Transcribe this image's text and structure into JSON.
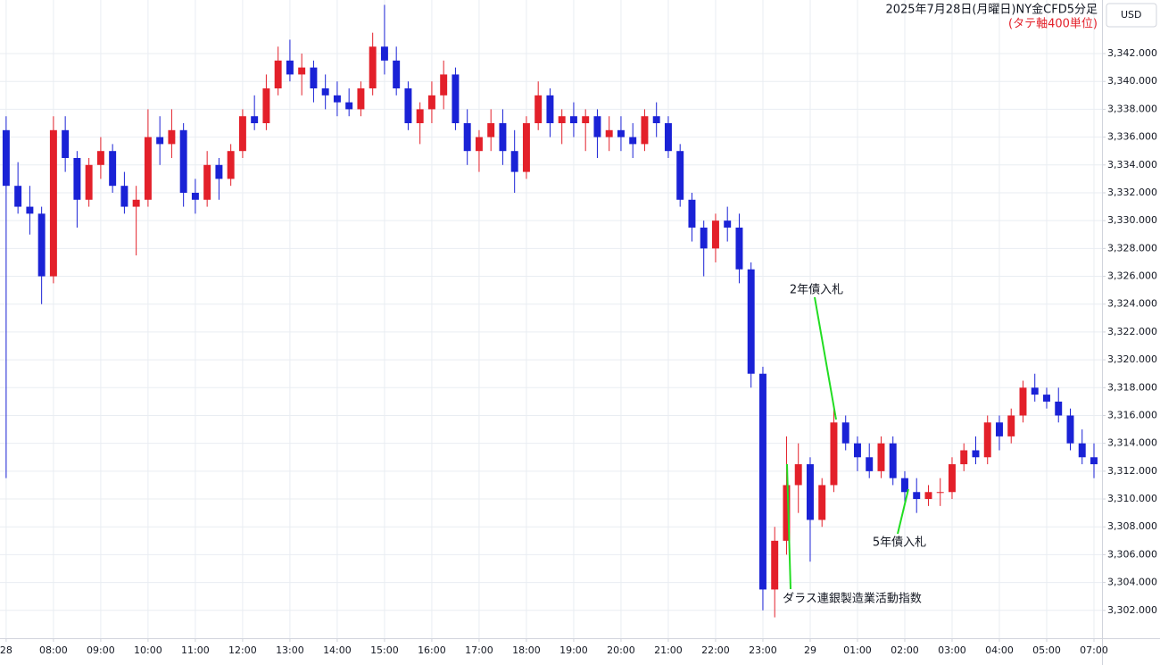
{
  "chart_data": {
    "type": "candlestick",
    "title": "2025年7月28日(月曜日)NY金CFD5分足",
    "subtitle": "(タテ軸400単位)",
    "currency": "USD",
    "up_color": "#e3202a",
    "down_color": "#1a22d6",
    "annotation_color": "#22dd22",
    "grid": true,
    "annotations": [
      {
        "text": "2年債入札"
      },
      {
        "text": "5年債入札"
      },
      {
        "text": "ダラス連銀製造業活動指数"
      }
    ],
    "xlim": [
      -0.13,
      23.17
    ],
    "xticks": [
      {
        "value": 0,
        "label": "28"
      },
      {
        "value": 1,
        "label": "08:00"
      },
      {
        "value": 2,
        "label": "09:00"
      },
      {
        "value": 3,
        "label": "10:00"
      },
      {
        "value": 4,
        "label": "11:00"
      },
      {
        "value": 5,
        "label": "12:00"
      },
      {
        "value": 6,
        "label": "13:00"
      },
      {
        "value": 7,
        "label": "14:00"
      },
      {
        "value": 8,
        "label": "15:00"
      },
      {
        "value": 9,
        "label": "16:00"
      },
      {
        "value": 10,
        "label": "17:00"
      },
      {
        "value": 11,
        "label": "18:00"
      },
      {
        "value": 12,
        "label": "19:00"
      },
      {
        "value": 13,
        "label": "20:00"
      },
      {
        "value": 14,
        "label": "21:00"
      },
      {
        "value": 15,
        "label": "22:00"
      },
      {
        "value": 16,
        "label": "23:00"
      },
      {
        "value": 17,
        "label": "29"
      },
      {
        "value": 18,
        "label": "01:00"
      },
      {
        "value": 19,
        "label": "02:00"
      },
      {
        "value": 20,
        "label": "03:00"
      },
      {
        "value": 21,
        "label": "04:00"
      },
      {
        "value": 22,
        "label": "05:00"
      },
      {
        "value": 23,
        "label": "07:00"
      }
    ],
    "ylim": [
      3300,
      3345.85
    ],
    "yticks": [
      {
        "value": 3302,
        "label": "3,302.000"
      },
      {
        "value": 3304,
        "label": "3,304.000"
      },
      {
        "value": 3306,
        "label": "3,306.000"
      },
      {
        "value": 3308,
        "label": "3,308.000"
      },
      {
        "value": 3310,
        "label": "3,310.000"
      },
      {
        "value": 3312,
        "label": "3,312.000"
      },
      {
        "value": 3314,
        "label": "3,314.000"
      },
      {
        "value": 3316,
        "label": "3,316.000"
      },
      {
        "value": 3318,
        "label": "3,318.000"
      },
      {
        "value": 3320,
        "label": "3,320.000"
      },
      {
        "value": 3322,
        "label": "3,322.000"
      },
      {
        "value": 3324,
        "label": "3,324.000"
      },
      {
        "value": 3326,
        "label": "3,326.000"
      },
      {
        "value": 3328,
        "label": "3,328.000"
      },
      {
        "value": 3330,
        "label": "3,330.000"
      },
      {
        "value": 3332,
        "label": "3,332.000"
      },
      {
        "value": 3334,
        "label": "3,334.000"
      },
      {
        "value": 3336,
        "label": "3,336.000"
      },
      {
        "value": 3338,
        "label": "3,338.000"
      },
      {
        "value": 3340,
        "label": "3,340.000"
      },
      {
        "value": 3342,
        "label": "3,342.000"
      }
    ],
    "x": [
      0,
      0.25,
      0.5,
      0.75,
      1,
      1.25,
      1.5,
      1.75,
      2,
      2.25,
      2.5,
      2.75,
      3,
      3.25,
      3.5,
      3.75,
      4,
      4.25,
      4.5,
      4.75,
      5,
      5.25,
      5.5,
      5.75,
      6,
      6.25,
      6.5,
      6.75,
      7,
      7.25,
      7.5,
      7.75,
      8,
      8.25,
      8.5,
      8.75,
      9,
      9.25,
      9.5,
      9.75,
      10,
      10.25,
      10.5,
      10.75,
      11,
      11.25,
      11.5,
      11.75,
      12,
      12.25,
      12.5,
      12.75,
      13,
      13.25,
      13.5,
      13.75,
      14,
      14.25,
      14.5,
      14.75,
      15,
      15.25,
      15.5,
      15.75,
      16,
      16.25,
      16.5,
      16.75,
      17,
      17.25,
      17.5,
      17.75,
      18,
      18.25,
      18.5,
      18.75,
      19,
      19.25,
      19.5,
      19.75,
      20,
      20.25,
      20.5,
      20.75,
      21,
      21.25,
      21.5,
      21.75,
      22,
      22.25,
      22.5,
      22.75,
      23
    ],
    "open": [
      3336.5,
      3332.5,
      3331,
      3330.5,
      3326,
      3336.5,
      3334.5,
      3331.5,
      3334,
      3335,
      3332.5,
      3331,
      3331.5,
      3336,
      3335.5,
      3336.5,
      3332,
      3331.5,
      3334,
      3333,
      3335,
      3337.5,
      3337,
      3339.5,
      3341.5,
      3340.5,
      3341,
      3339.5,
      3339,
      3338.5,
      3338,
      3339.5,
      3342.5,
      3341.5,
      3339.5,
      3337,
      3338,
      3339,
      3340.5,
      3337,
      3335,
      3336,
      3337,
      3335,
      3333.5,
      3337,
      3339,
      3337,
      3337.5,
      3337,
      3337.5,
      3336,
      3336.5,
      3336,
      3335.5,
      3337.5,
      3337,
      3335,
      3331.5,
      3329.5,
      3328,
      3330,
      3329.5,
      3326.5,
      3319,
      3303.5,
      3307,
      3311,
      3312.5,
      3308.5,
      3311,
      3315.5,
      3314,
      3313,
      3312,
      3314,
      3311.5,
      3310.5,
      3310,
      3310.5,
      3310.5,
      3312.5,
      3313.5,
      3313,
      3315.5,
      3314.5,
      3316,
      3318,
      3317.5,
      3317,
      3316,
      3314,
      3313
    ],
    "high": [
      3337.5,
      3334.2,
      3332.5,
      3331,
      3337.5,
      3337.5,
      3335,
      3334.5,
      3336,
      3335.5,
      3333.5,
      3332.5,
      3338,
      3337.5,
      3338,
      3337,
      3333,
      3335,
      3334.5,
      3335.5,
      3338,
      3339,
      3340.5,
      3342.5,
      3343,
      3342,
      3341.5,
      3340.5,
      3340,
      3339.5,
      3340,
      3343.5,
      3345.5,
      3342.5,
      3340,
      3338.5,
      3340,
      3341.5,
      3341,
      3338,
      3336.5,
      3338,
      3338,
      3336.5,
      3337.5,
      3340,
      3339.5,
      3338,
      3338.5,
      3338,
      3338,
      3337.5,
      3337.5,
      3337,
      3338,
      3338.5,
      3337.5,
      3335.5,
      3332,
      3330,
      3330.5,
      3331,
      3330.5,
      3327,
      3319.5,
      3308,
      3314.5,
      3314,
      3313,
      3311.5,
      3316.5,
      3316,
      3314.5,
      3314,
      3314.5,
      3314.5,
      3312,
      3311.5,
      3311,
      3311.5,
      3313,
      3314,
      3314.5,
      3316,
      3316,
      3316.5,
      3318.5,
      3319,
      3318,
      3318,
      3316.5,
      3315,
      3314
    ],
    "low": [
      3311.5,
      3330.5,
      3329,
      3324,
      3325.5,
      3333.5,
      3329.5,
      3331,
      3333,
      3332,
      3330.5,
      3327.5,
      3331,
      3334,
      3334.5,
      3331,
      3330.5,
      3331,
      3331.5,
      3332.5,
      3334.5,
      3336.5,
      3336.5,
      3339,
      3340,
      3339,
      3338.5,
      3338,
      3337.5,
      3337.5,
      3337.5,
      3339,
      3340.5,
      3339,
      3336.5,
      3335.5,
      3337,
      3338,
      3336.5,
      3334,
      3333.5,
      3335,
      3334,
      3332,
      3333,
      3336.5,
      3336,
      3335.5,
      3336,
      3335,
      3334.5,
      3335,
      3335,
      3334.5,
      3335,
      3336,
      3334.5,
      3331,
      3328.5,
      3326,
      3327,
      3328.5,
      3325.5,
      3318,
      3302,
      3301.5,
      3306,
      3309,
      3305.5,
      3308,
      3310.5,
      3313.5,
      3312,
      3311.5,
      3311.5,
      3311,
      3309.5,
      3309,
      3309.5,
      3309.5,
      3310,
      3312,
      3312.5,
      3312.5,
      3313.5,
      3314,
      3315.5,
      3317,
      3316.5,
      3315.5,
      3313.5,
      3312.5,
      3311.5
    ],
    "close": [
      3332.5,
      3331,
      3330.5,
      3326,
      3336.5,
      3334.5,
      3331.5,
      3334,
      3335,
      3332.5,
      3331,
      3331.5,
      3336,
      3335.5,
      3336.5,
      3332,
      3331.5,
      3334,
      3333,
      3335,
      3337.5,
      3337,
      3339.5,
      3341.5,
      3340.5,
      3341,
      3339.5,
      3339,
      3338.5,
      3338,
      3339.5,
      3342.5,
      3341.5,
      3339.5,
      3337,
      3338,
      3339,
      3340.5,
      3337,
      3335,
      3336,
      3337,
      3335,
      3333.5,
      3337,
      3339,
      3337,
      3337.5,
      3337,
      3337.5,
      3336,
      3336.5,
      3336,
      3335.5,
      3337.5,
      3337,
      3335,
      3331.5,
      3329.5,
      3328,
      3330,
      3329.5,
      3326.5,
      3319,
      3303.5,
      3307,
      3311,
      3312.5,
      3308.5,
      3311,
      3315.5,
      3314,
      3313,
      3312,
      3314,
      3311.5,
      3310.5,
      3310,
      3310.5,
      3310.5,
      3312.5,
      3313.5,
      3313,
      3315.5,
      3314.5,
      3316,
      3318,
      3317.5,
      3317,
      3316,
      3314,
      3313,
      3312.5
    ]
  }
}
